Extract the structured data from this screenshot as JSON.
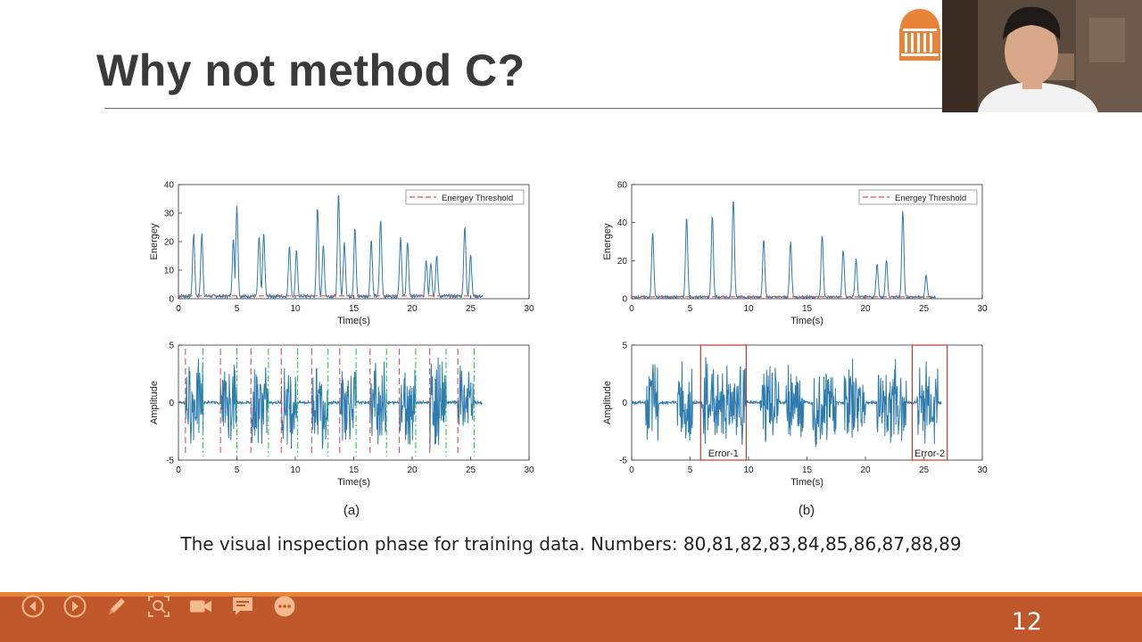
{
  "slide": {
    "title": "Why not method C?",
    "caption": "The visual inspection phase for training data. Numbers: 80,81,82,83,84,85,86,87,88,89",
    "page_number": "12"
  },
  "toolbar": {
    "buttons": [
      {
        "name": "previous-slide-button",
        "icon": "arrow-left-circle-icon"
      },
      {
        "name": "next-slide-button",
        "icon": "arrow-right-circle-icon"
      },
      {
        "name": "pen-tool-button",
        "icon": "pencil-icon"
      },
      {
        "name": "zoom-button",
        "icon": "magnifier-icon"
      },
      {
        "name": "camera-button",
        "icon": "video-camera-icon"
      },
      {
        "name": "subtitles-button",
        "icon": "speech-bubble-icon"
      },
      {
        "name": "more-options-button",
        "icon": "ellipsis-icon"
      }
    ]
  },
  "colors": {
    "accent_orange": "#e8833a",
    "bar": "#c0572a",
    "signal": "#2e7bb0",
    "threshold": "#d9534f",
    "boundary_green": "#2ecc40",
    "error_box": "#c0392b"
  },
  "chart_data": [
    {
      "panel": "(a)",
      "type": "line",
      "xlabel": "Time(s)",
      "ylabel": "Energey",
      "xlim": [
        0,
        30
      ],
      "ylim": [
        0,
        40
      ],
      "xticks": [
        0,
        5,
        10,
        15,
        20,
        25,
        30
      ],
      "yticks": [
        0,
        10,
        20,
        30,
        40
      ],
      "legend": "Energey Threshold",
      "threshold": 1,
      "peaks": [
        [
          1.3,
          22
        ],
        [
          2.0,
          22
        ],
        [
          4.7,
          20
        ],
        [
          5.0,
          32
        ],
        [
          6.9,
          21
        ],
        [
          7.3,
          22
        ],
        [
          9.5,
          18
        ],
        [
          10.1,
          16
        ],
        [
          11.9,
          31
        ],
        [
          12.4,
          18
        ],
        [
          13.7,
          36
        ],
        [
          14.2,
          19
        ],
        [
          15.1,
          24
        ],
        [
          16.5,
          20
        ],
        [
          17.3,
          27
        ],
        [
          19.0,
          21
        ],
        [
          19.6,
          19
        ],
        [
          21.2,
          13
        ],
        [
          21.6,
          12
        ],
        [
          22.1,
          14
        ],
        [
          24.5,
          25
        ],
        [
          25.0,
          15
        ]
      ],
      "xend": 26
    },
    {
      "panel": "(a)",
      "type": "line",
      "xlabel": "Time(s)",
      "ylabel": "Amplitude",
      "xlim": [
        0,
        30
      ],
      "ylim": [
        -5,
        5
      ],
      "xticks": [
        0,
        5,
        10,
        15,
        20,
        25,
        30
      ],
      "yticks": [
        -5,
        0,
        5
      ],
      "onsets": [
        0.6,
        3.6,
        6.2,
        8.8,
        11.4,
        13.8,
        16.4,
        18.9,
        21.5,
        23.9
      ],
      "offsets": [
        2.1,
        5.0,
        7.7,
        10.2,
        12.8,
        15.2,
        17.8,
        20.3,
        22.9,
        25.3
      ],
      "xend": 26
    },
    {
      "panel": "(b)",
      "type": "line",
      "xlabel": "Time(s)",
      "ylabel": "Energey",
      "xlim": [
        0,
        30
      ],
      "ylim": [
        0,
        60
      ],
      "xticks": [
        0,
        5,
        10,
        15,
        20,
        25,
        30
      ],
      "yticks": [
        0,
        20,
        40,
        60
      ],
      "legend": "Energey Threshold",
      "threshold": 1,
      "peaks": [
        [
          1.8,
          34
        ],
        [
          4.7,
          42
        ],
        [
          6.9,
          43
        ],
        [
          8.7,
          52
        ],
        [
          11.3,
          31
        ],
        [
          13.6,
          29
        ],
        [
          16.3,
          33
        ],
        [
          18.1,
          25
        ],
        [
          19.2,
          20
        ],
        [
          21.0,
          18
        ],
        [
          21.8,
          20
        ],
        [
          23.2,
          46
        ],
        [
          25.2,
          12
        ]
      ],
      "xend": 26
    },
    {
      "panel": "(b)",
      "type": "line",
      "xlabel": "Time(s)",
      "ylabel": "Amplitude",
      "xlim": [
        0,
        30
      ],
      "ylim": [
        -5,
        5
      ],
      "xticks": [
        0,
        5,
        10,
        15,
        20,
        25,
        30
      ],
      "yticks": [
        -5,
        0,
        5
      ],
      "annotations": [
        {
          "label": "Error-1",
          "x0": 5.9,
          "x1": 9.8
        },
        {
          "label": "Error-2",
          "x0": 24.0,
          "x1": 27.0
        }
      ],
      "xend": 26.5
    }
  ],
  "panel_labels": [
    "(a)",
    "(b)"
  ]
}
